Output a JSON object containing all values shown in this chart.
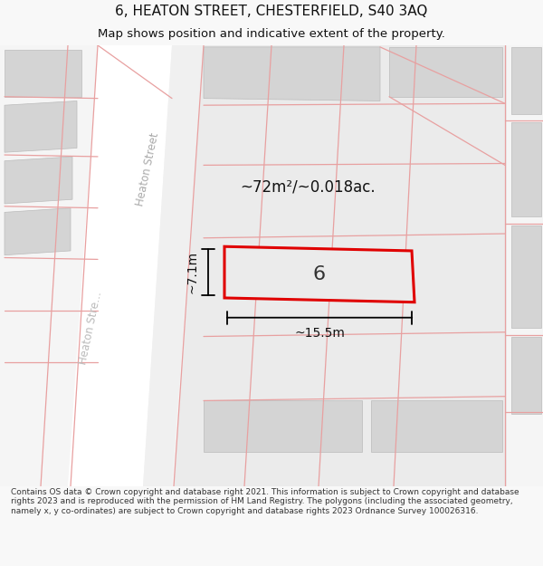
{
  "title_line1": "6, HEATON STREET, CHESTERFIELD, S40 3AQ",
  "title_line2": "Map shows position and indicative extent of the property.",
  "footer_text": "Contains OS data © Crown copyright and database right 2021. This information is subject to Crown copyright and database rights 2023 and is reproduced with the permission of HM Land Registry. The polygons (including the associated geometry, namely x, y co-ordinates) are subject to Crown copyright and database rights 2023 Ordnance Survey 100026316.",
  "bg_color": "#f8f8f8",
  "map_bg": "#f5f5f5",
  "parcel_bg": "#ebebeb",
  "road_color": "#ffffff",
  "bldg_color": "#d4d4d4",
  "pink_line": "#e8a0a0",
  "red_line": "#e00000",
  "area_label": "~72m²/~0.018ac.",
  "number_label": "6",
  "width_label": "~15.5m",
  "height_label": "~7.1m",
  "street_label1": "Heaton Street",
  "street_label2": "Heaton Stre…",
  "title_fontsize": 11,
  "subtitle_fontsize": 9.5,
  "footer_fontsize": 6.5
}
